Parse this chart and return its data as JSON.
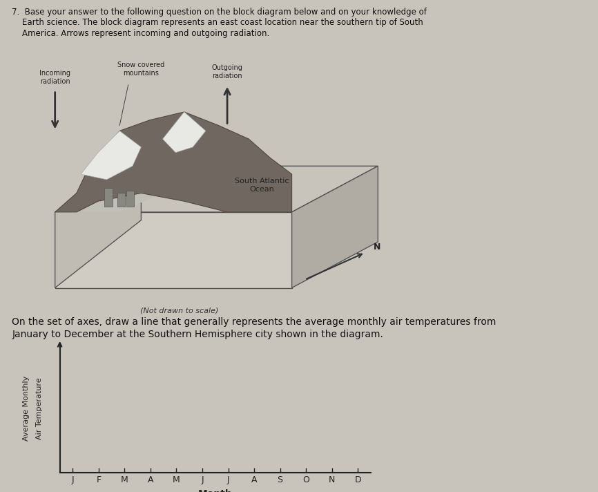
{
  "months": [
    "J",
    "F",
    "M",
    "A",
    "M",
    "J",
    "J",
    "A",
    "S",
    "O",
    "N",
    "D"
  ],
  "xlabel": "Month",
  "ylabel_line1": "Average Monthly",
  "ylabel_line2": "Air Temperature",
  "background_color": "#c8c4bc",
  "fig_width": 8.66,
  "fig_height": 7.12,
  "title_line1": "7.  Base your answer to the following question on the block diagram below and on your knowledge of",
  "title_line2": "    Earth science. The block diagram represents an east coast location near the southern tip of South",
  "title_line3": "    America. Arrows represent incoming and outgoing radiation.",
  "note_text": "(Not drawn to scale)",
  "instruction_line1": "On the set of axes, draw a line that generally represents the average monthly air temperatures from",
  "instruction_line2": "January to December at the Southern Hemisphere city shown in the diagram.",
  "tick_color": "#222222",
  "axis_color": "#222222",
  "font_size_title": 8.5,
  "font_size_axis_label": 8,
  "font_size_tick": 9,
  "font_size_instruction": 10,
  "block_color_top": "#c8c4bc",
  "block_color_front": "#d8d4cc",
  "block_color_right": "#b8b4ac",
  "mountain_color": "#706860",
  "snow_color": "#e8e8e8",
  "label_incoming": "Incoming\nradiation",
  "label_snow": "Snow covered\nmountains",
  "label_outgoing": "Outgoing\nradiation",
  "label_ocean": "South Atlantic\nOcean",
  "label_north": "N"
}
